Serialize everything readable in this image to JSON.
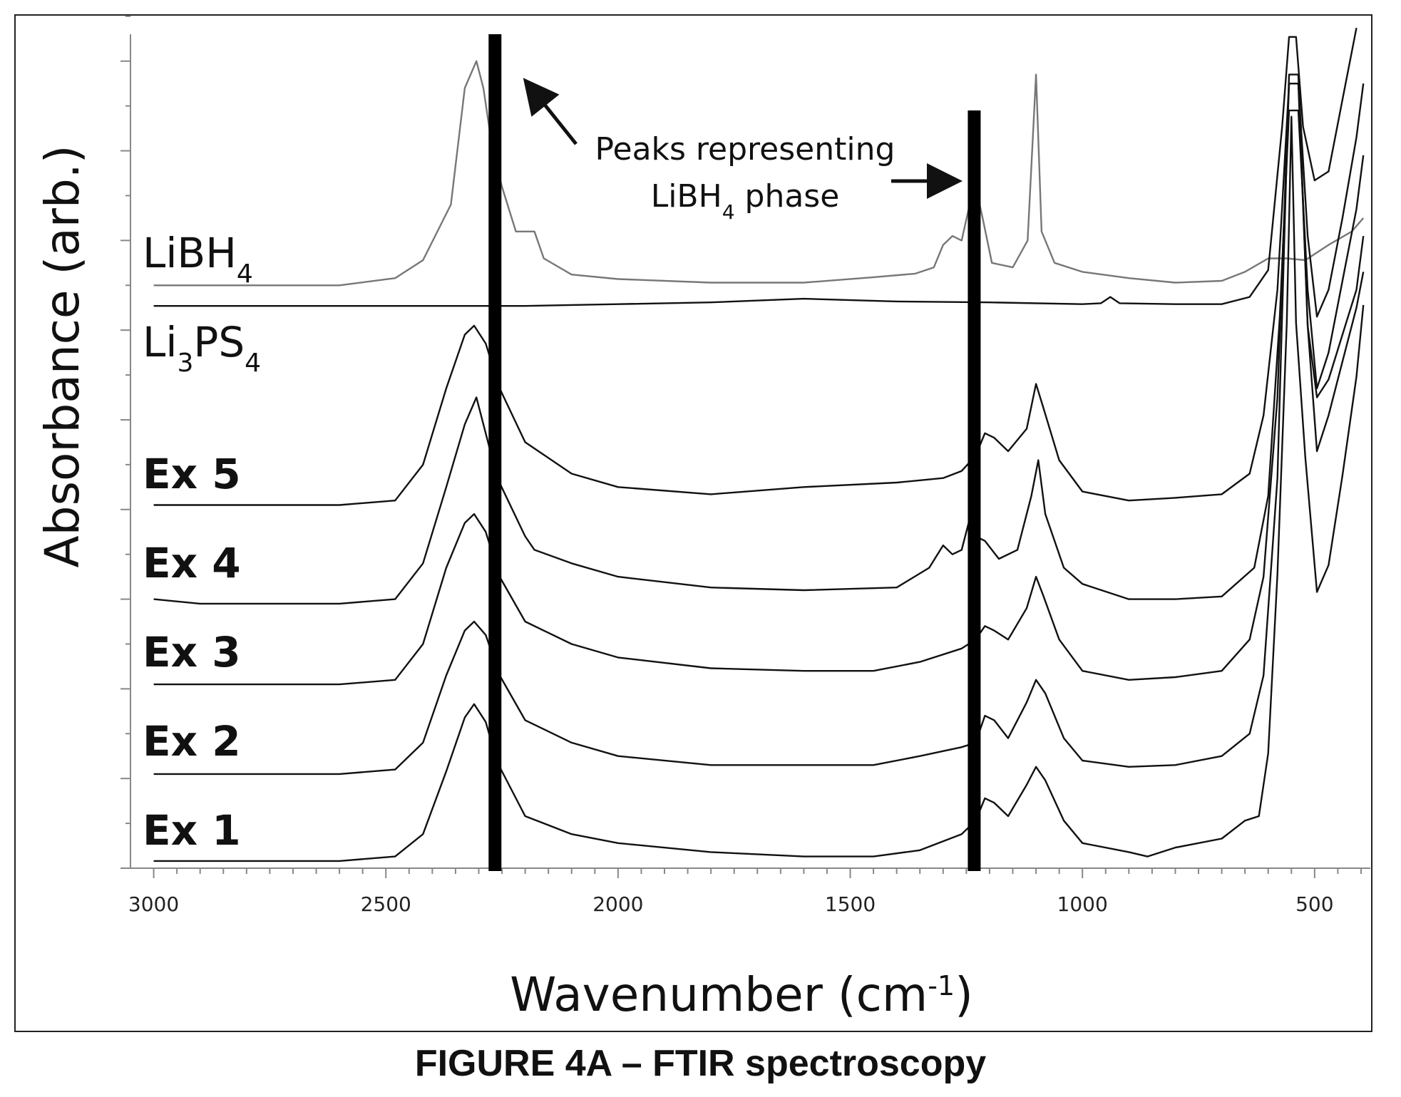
{
  "caption": "FIGURE 4A – FTIR spectroscopy",
  "chart_data": {
    "type": "line",
    "title": "",
    "xlabel": "Wavenumber (cm",
    "xlabel_sup": "-1",
    "xlabel_close": ")",
    "ylabel": "Absorbance (arb.)",
    "x_reversed": true,
    "xlim": [
      3050,
      380
    ],
    "xticks": [
      3000,
      2500,
      2000,
      1500,
      1000,
      500
    ],
    "ylim": [
      0,
      9.3
    ],
    "grid": false,
    "y_ticks_unlabeled": true,
    "colors": {
      "line": "#111111",
      "libh4_line": "#777777",
      "marker_bar": "#000000"
    },
    "marker_bars": [
      {
        "x": 2265,
        "ytop": 9.3
      },
      {
        "x": 1233,
        "ytop": 8.45
      }
    ],
    "annotation": {
      "line1": "Peaks representing",
      "line2_main": "LiBH",
      "line2_sub": "4",
      "line2_rest": " phase"
    },
    "series": [
      {
        "name": "LiBH4",
        "label_main": "LiBH",
        "label_sub": "4",
        "label_sub2": "",
        "label_rest": "",
        "bold": false,
        "offset": 6.5,
        "points": [
          [
            3000,
            0
          ],
          [
            2600,
            0
          ],
          [
            2480,
            0.08
          ],
          [
            2420,
            0.28
          ],
          [
            2360,
            0.9
          ],
          [
            2330,
            2.2
          ],
          [
            2305,
            2.5
          ],
          [
            2290,
            2.2
          ],
          [
            2270,
            1.5
          ],
          [
            2250,
            1.1
          ],
          [
            2220,
            0.6
          ],
          [
            2180,
            0.6
          ],
          [
            2160,
            0.3
          ],
          [
            2100,
            0.12
          ],
          [
            2000,
            0.07
          ],
          [
            1800,
            0.03
          ],
          [
            1600,
            0.03
          ],
          [
            1450,
            0.09
          ],
          [
            1360,
            0.13
          ],
          [
            1320,
            0.2
          ],
          [
            1300,
            0.45
          ],
          [
            1280,
            0.55
          ],
          [
            1260,
            0.5
          ],
          [
            1245,
            0.85
          ],
          [
            1230,
            1.1
          ],
          [
            1215,
            0.75
          ],
          [
            1195,
            0.25
          ],
          [
            1150,
            0.2
          ],
          [
            1118,
            0.5
          ],
          [
            1100,
            2.35
          ],
          [
            1088,
            0.6
          ],
          [
            1060,
            0.25
          ],
          [
            1000,
            0.15
          ],
          [
            900,
            0.08
          ],
          [
            800,
            0.03
          ],
          [
            700,
            0.05
          ],
          [
            650,
            0.15
          ],
          [
            600,
            0.3
          ],
          [
            560,
            0.3
          ],
          [
            520,
            0.28
          ],
          [
            470,
            0.45
          ],
          [
            420,
            0.6
          ],
          [
            395,
            0.75
          ]
        ]
      },
      {
        "name": "Li3PS4",
        "label_main": "Li",
        "label_sub": "3",
        "label_sub2": "4",
        "label_rest": "PS",
        "bold": false,
        "offset": 6.27,
        "points": [
          [
            3000,
            0
          ],
          [
            2500,
            0
          ],
          [
            2300,
            0
          ],
          [
            2200,
            0
          ],
          [
            2000,
            0.02
          ],
          [
            1800,
            0.04
          ],
          [
            1600,
            0.08
          ],
          [
            1400,
            0.05
          ],
          [
            1200,
            0.04
          ],
          [
            1000,
            0.02
          ],
          [
            960,
            0.03
          ],
          [
            940,
            0.1
          ],
          [
            920,
            0.03
          ],
          [
            800,
            0.02
          ],
          [
            700,
            0.02
          ],
          [
            640,
            0.1
          ],
          [
            600,
            0.4
          ],
          [
            570,
            2.0
          ],
          [
            555,
            3.0
          ],
          [
            540,
            3.0
          ],
          [
            525,
            2.0
          ],
          [
            500,
            1.4
          ],
          [
            470,
            1.5
          ],
          [
            440,
            2.3
          ],
          [
            410,
            3.1
          ]
        ]
      },
      {
        "name": "Ex 5",
        "label_main": "Ex 5",
        "label_sub": "",
        "label_sub2": "",
        "label_rest": "",
        "bold": true,
        "offset": 4.05,
        "points": [
          [
            3000,
            0
          ],
          [
            2600,
            0
          ],
          [
            2480,
            0.05
          ],
          [
            2420,
            0.45
          ],
          [
            2370,
            1.3
          ],
          [
            2330,
            1.9
          ],
          [
            2310,
            2.0
          ],
          [
            2285,
            1.8
          ],
          [
            2255,
            1.3
          ],
          [
            2200,
            0.7
          ],
          [
            2100,
            0.35
          ],
          [
            2000,
            0.2
          ],
          [
            1800,
            0.12
          ],
          [
            1600,
            0.2
          ],
          [
            1400,
            0.25
          ],
          [
            1300,
            0.3
          ],
          [
            1260,
            0.38
          ],
          [
            1230,
            0.55
          ],
          [
            1210,
            0.8
          ],
          [
            1190,
            0.75
          ],
          [
            1160,
            0.6
          ],
          [
            1120,
            0.85
          ],
          [
            1100,
            1.35
          ],
          [
            1085,
            1.1
          ],
          [
            1050,
            0.5
          ],
          [
            1000,
            0.15
          ],
          [
            900,
            0.05
          ],
          [
            800,
            0.08
          ],
          [
            700,
            0.12
          ],
          [
            640,
            0.35
          ],
          [
            610,
            1.0
          ],
          [
            580,
            2.4
          ],
          [
            555,
            4.7
          ],
          [
            535,
            4.7
          ],
          [
            515,
            3.0
          ],
          [
            495,
            2.1
          ],
          [
            470,
            2.4
          ],
          [
            440,
            3.2
          ],
          [
            410,
            4.1
          ],
          [
            395,
            4.7
          ]
        ]
      },
      {
        "name": "Ex 4",
        "label_main": "Ex 4",
        "label_sub": "",
        "label_sub2": "",
        "label_rest": "",
        "bold": true,
        "offset": 2.95,
        "points": [
          [
            3000,
            0.05
          ],
          [
            2900,
            0
          ],
          [
            2600,
            0
          ],
          [
            2480,
            0.05
          ],
          [
            2420,
            0.45
          ],
          [
            2370,
            1.3
          ],
          [
            2330,
            2.0
          ],
          [
            2305,
            2.3
          ],
          [
            2290,
            2.0
          ],
          [
            2260,
            1.4
          ],
          [
            2200,
            0.75
          ],
          [
            2180,
            0.6
          ],
          [
            2100,
            0.45
          ],
          [
            2000,
            0.3
          ],
          [
            1800,
            0.18
          ],
          [
            1600,
            0.15
          ],
          [
            1400,
            0.18
          ],
          [
            1330,
            0.4
          ],
          [
            1300,
            0.65
          ],
          [
            1280,
            0.55
          ],
          [
            1260,
            0.6
          ],
          [
            1245,
            0.9
          ],
          [
            1230,
            0.75
          ],
          [
            1210,
            0.7
          ],
          [
            1180,
            0.5
          ],
          [
            1140,
            0.6
          ],
          [
            1110,
            1.2
          ],
          [
            1095,
            1.6
          ],
          [
            1080,
            1.0
          ],
          [
            1040,
            0.4
          ],
          [
            1000,
            0.22
          ],
          [
            900,
            0.05
          ],
          [
            800,
            0.05
          ],
          [
            700,
            0.08
          ],
          [
            630,
            0.4
          ],
          [
            600,
            1.2
          ],
          [
            575,
            3.2
          ],
          [
            555,
            5.5
          ],
          [
            535,
            5.5
          ],
          [
            515,
            3.5
          ],
          [
            495,
            2.4
          ],
          [
            470,
            2.8
          ],
          [
            440,
            3.6
          ],
          [
            410,
            4.4
          ],
          [
            395,
            5.0
          ]
        ]
      },
      {
        "name": "Ex 3",
        "label_main": "Ex 3",
        "label_sub": "",
        "label_sub2": "",
        "label_rest": "",
        "bold": true,
        "offset": 2.05,
        "points": [
          [
            3000,
            0
          ],
          [
            2600,
            0
          ],
          [
            2480,
            0.05
          ],
          [
            2420,
            0.45
          ],
          [
            2370,
            1.3
          ],
          [
            2330,
            1.8
          ],
          [
            2310,
            1.9
          ],
          [
            2285,
            1.7
          ],
          [
            2255,
            1.2
          ],
          [
            2200,
            0.7
          ],
          [
            2100,
            0.45
          ],
          [
            2000,
            0.3
          ],
          [
            1800,
            0.18
          ],
          [
            1600,
            0.15
          ],
          [
            1450,
            0.15
          ],
          [
            1350,
            0.25
          ],
          [
            1260,
            0.4
          ],
          [
            1230,
            0.5
          ],
          [
            1210,
            0.65
          ],
          [
            1190,
            0.6
          ],
          [
            1160,
            0.5
          ],
          [
            1120,
            0.85
          ],
          [
            1100,
            1.2
          ],
          [
            1085,
            1.0
          ],
          [
            1050,
            0.5
          ],
          [
            1000,
            0.15
          ],
          [
            900,
            0.05
          ],
          [
            800,
            0.08
          ],
          [
            700,
            0.15
          ],
          [
            640,
            0.5
          ],
          [
            610,
            1.2
          ],
          [
            580,
            3.2
          ],
          [
            555,
            6.7
          ],
          [
            535,
            6.7
          ],
          [
            515,
            4.0
          ],
          [
            495,
            3.2
          ],
          [
            470,
            3.4
          ],
          [
            440,
            3.9
          ],
          [
            410,
            4.4
          ],
          [
            395,
            5.0
          ]
        ]
      },
      {
        "name": "Ex 2",
        "label_main": "Ex 2",
        "label_sub": "",
        "label_sub2": "",
        "label_rest": "",
        "bold": true,
        "offset": 1.05,
        "points": [
          [
            3000,
            0
          ],
          [
            2600,
            0
          ],
          [
            2480,
            0.05
          ],
          [
            2420,
            0.35
          ],
          [
            2370,
            1.1
          ],
          [
            2330,
            1.6
          ],
          [
            2310,
            1.7
          ],
          [
            2285,
            1.55
          ],
          [
            2255,
            1.1
          ],
          [
            2200,
            0.6
          ],
          [
            2100,
            0.35
          ],
          [
            2000,
            0.2
          ],
          [
            1800,
            0.1
          ],
          [
            1600,
            0.1
          ],
          [
            1450,
            0.1
          ],
          [
            1350,
            0.2
          ],
          [
            1260,
            0.3
          ],
          [
            1230,
            0.35
          ],
          [
            1210,
            0.65
          ],
          [
            1190,
            0.6
          ],
          [
            1160,
            0.4
          ],
          [
            1120,
            0.8
          ],
          [
            1100,
            1.05
          ],
          [
            1080,
            0.9
          ],
          [
            1040,
            0.4
          ],
          [
            1000,
            0.15
          ],
          [
            900,
            0.08
          ],
          [
            800,
            0.1
          ],
          [
            700,
            0.2
          ],
          [
            640,
            0.45
          ],
          [
            610,
            1.1
          ],
          [
            580,
            3.3
          ],
          [
            555,
            7.8
          ],
          [
            535,
            7.8
          ],
          [
            515,
            5.0
          ],
          [
            495,
            3.6
          ],
          [
            470,
            4.0
          ],
          [
            440,
            4.6
          ],
          [
            410,
            5.2
          ],
          [
            395,
            5.6
          ]
        ]
      },
      {
        "name": "Ex 1",
        "label_main": "Ex 1",
        "label_sub": "",
        "label_sub2": "",
        "label_rest": "",
        "bold": true,
        "offset": 0.08,
        "points": [
          [
            3000,
            0
          ],
          [
            2600,
            0
          ],
          [
            2480,
            0.05
          ],
          [
            2420,
            0.3
          ],
          [
            2370,
            1.0
          ],
          [
            2330,
            1.6
          ],
          [
            2310,
            1.75
          ],
          [
            2285,
            1.55
          ],
          [
            2260,
            1.1
          ],
          [
            2200,
            0.5
          ],
          [
            2100,
            0.3
          ],
          [
            2000,
            0.2
          ],
          [
            1800,
            0.1
          ],
          [
            1600,
            0.05
          ],
          [
            1450,
            0.05
          ],
          [
            1350,
            0.12
          ],
          [
            1260,
            0.3
          ],
          [
            1230,
            0.45
          ],
          [
            1210,
            0.7
          ],
          [
            1190,
            0.65
          ],
          [
            1160,
            0.5
          ],
          [
            1120,
            0.85
          ],
          [
            1100,
            1.05
          ],
          [
            1080,
            0.9
          ],
          [
            1040,
            0.45
          ],
          [
            1000,
            0.2
          ],
          [
            900,
            0.1
          ],
          [
            860,
            0.05
          ],
          [
            800,
            0.15
          ],
          [
            700,
            0.25
          ],
          [
            650,
            0.45
          ],
          [
            620,
            0.5
          ],
          [
            600,
            1.2
          ],
          [
            580,
            3.2
          ],
          [
            560,
            6.0
          ],
          [
            550,
            8.3
          ],
          [
            540,
            6.0
          ],
          [
            520,
            4.5
          ],
          [
            495,
            3.0
          ],
          [
            470,
            3.3
          ],
          [
            440,
            4.3
          ],
          [
            410,
            5.4
          ],
          [
            395,
            6.2
          ]
        ]
      }
    ]
  }
}
